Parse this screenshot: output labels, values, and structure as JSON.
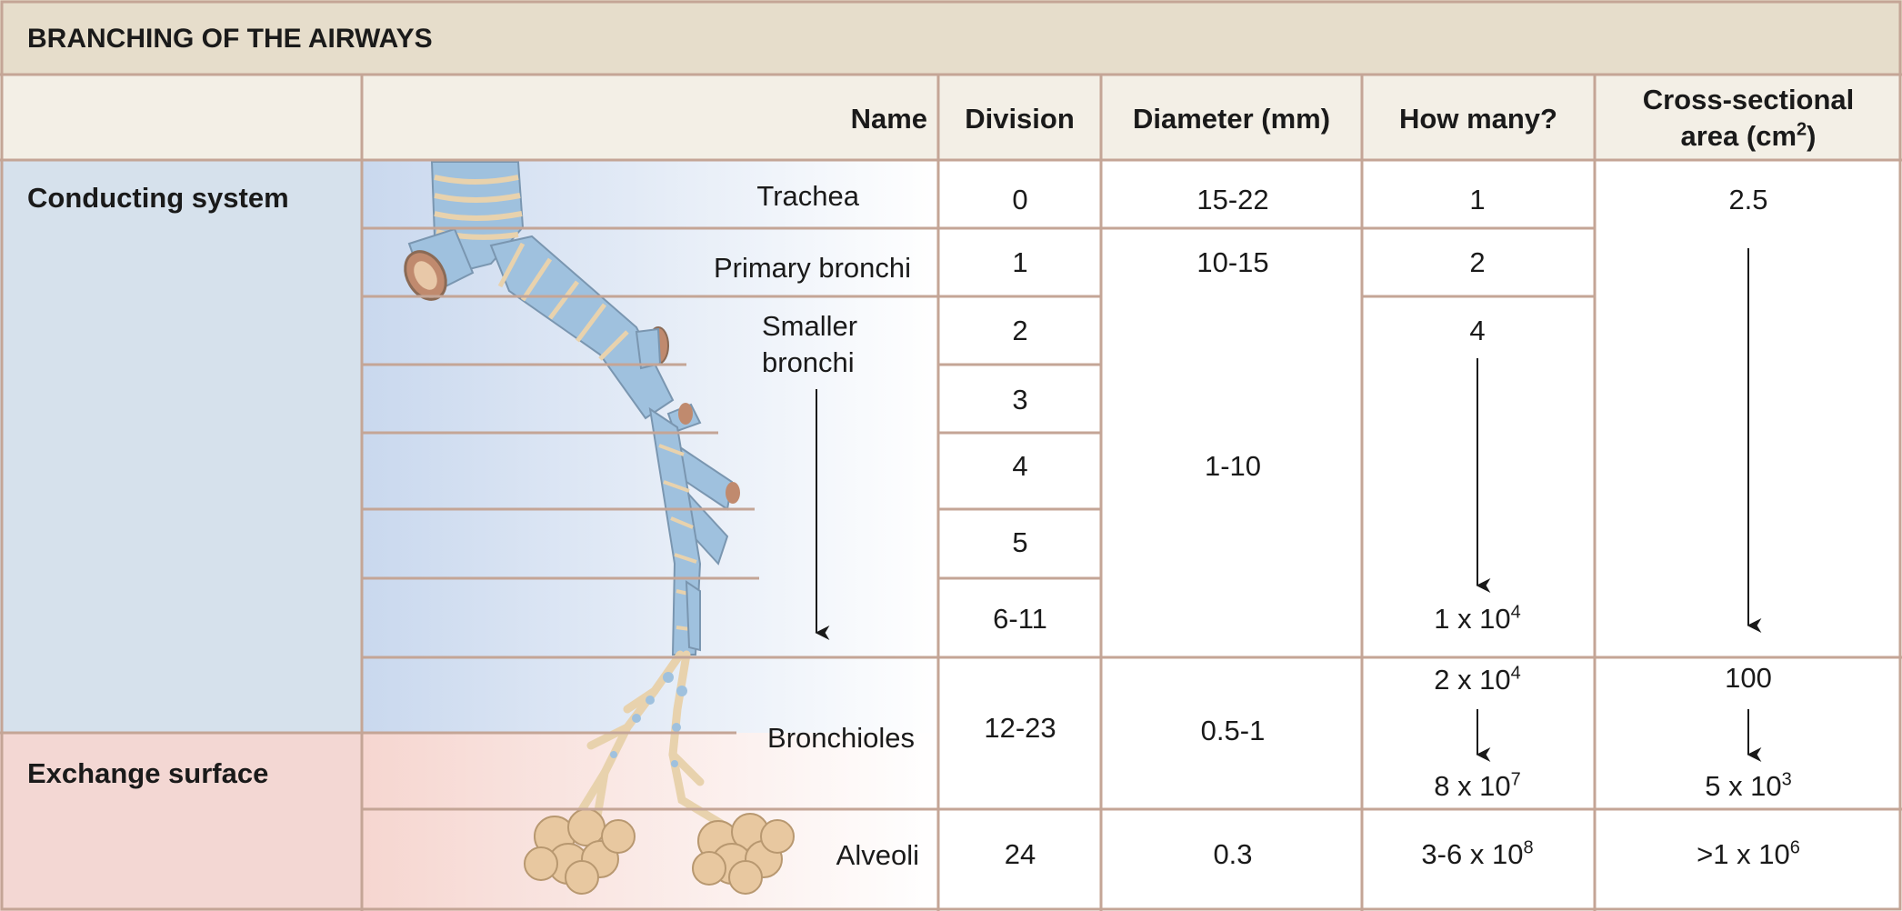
{
  "title": "BRANCHING OF THE AIRWAYS",
  "headers": {
    "name": "Name",
    "division": "Division",
    "diameter": "Diameter (mm)",
    "how_many": "How many?",
    "cross_line1": "Cross-sectional",
    "cross_line2_base": "area (cm",
    "cross_line2_sup": "2",
    "cross_line2_end": ")"
  },
  "systems": {
    "conducting": "Conducting system",
    "exchange": "Exchange surface"
  },
  "names": {
    "trachea": "Trachea",
    "primary": "Primary bronchi",
    "smaller_1": "Smaller",
    "smaller_2": "bronchi",
    "bronchioles": "Bronchioles",
    "alveoli": "Alveoli"
  },
  "divisions": [
    "0",
    "1",
    "2",
    "3",
    "4",
    "5",
    "6-11",
    "12-23",
    "24"
  ],
  "diameters": {
    "trachea": "15-22",
    "primary": "10-15",
    "smaller": "1-10",
    "bronchioles": "0.5-1",
    "alveoli": "0.3"
  },
  "how_many": {
    "trachea": "1",
    "primary": "2",
    "smaller_start": "4",
    "smaller_end_base": "1 x 10",
    "smaller_end_exp": "4",
    "bronchioles_start_base": "2 x 10",
    "bronchioles_start_exp": "4",
    "bronchioles_end_base": "8 x 10",
    "bronchioles_end_exp": "7",
    "alveoli_base": "3-6 x 10",
    "alveoli_exp": "8"
  },
  "cross_section": {
    "trachea": "2.5",
    "bronchioles_start": "100",
    "bronchioles_end_base": "5 x 10",
    "bronchioles_end_exp": "3",
    "alveoli_base": ">1 x 10",
    "alveoli_exp": "6"
  },
  "colors": {
    "header_bg": "#e6ddcb",
    "grid_line": "#c4a596",
    "conducting_bg": "#d6e1ec",
    "exchange_bg": "#f3d7d3",
    "airway_blue": "#9fc1de",
    "airway_tan": "#e8d2ad"
  }
}
